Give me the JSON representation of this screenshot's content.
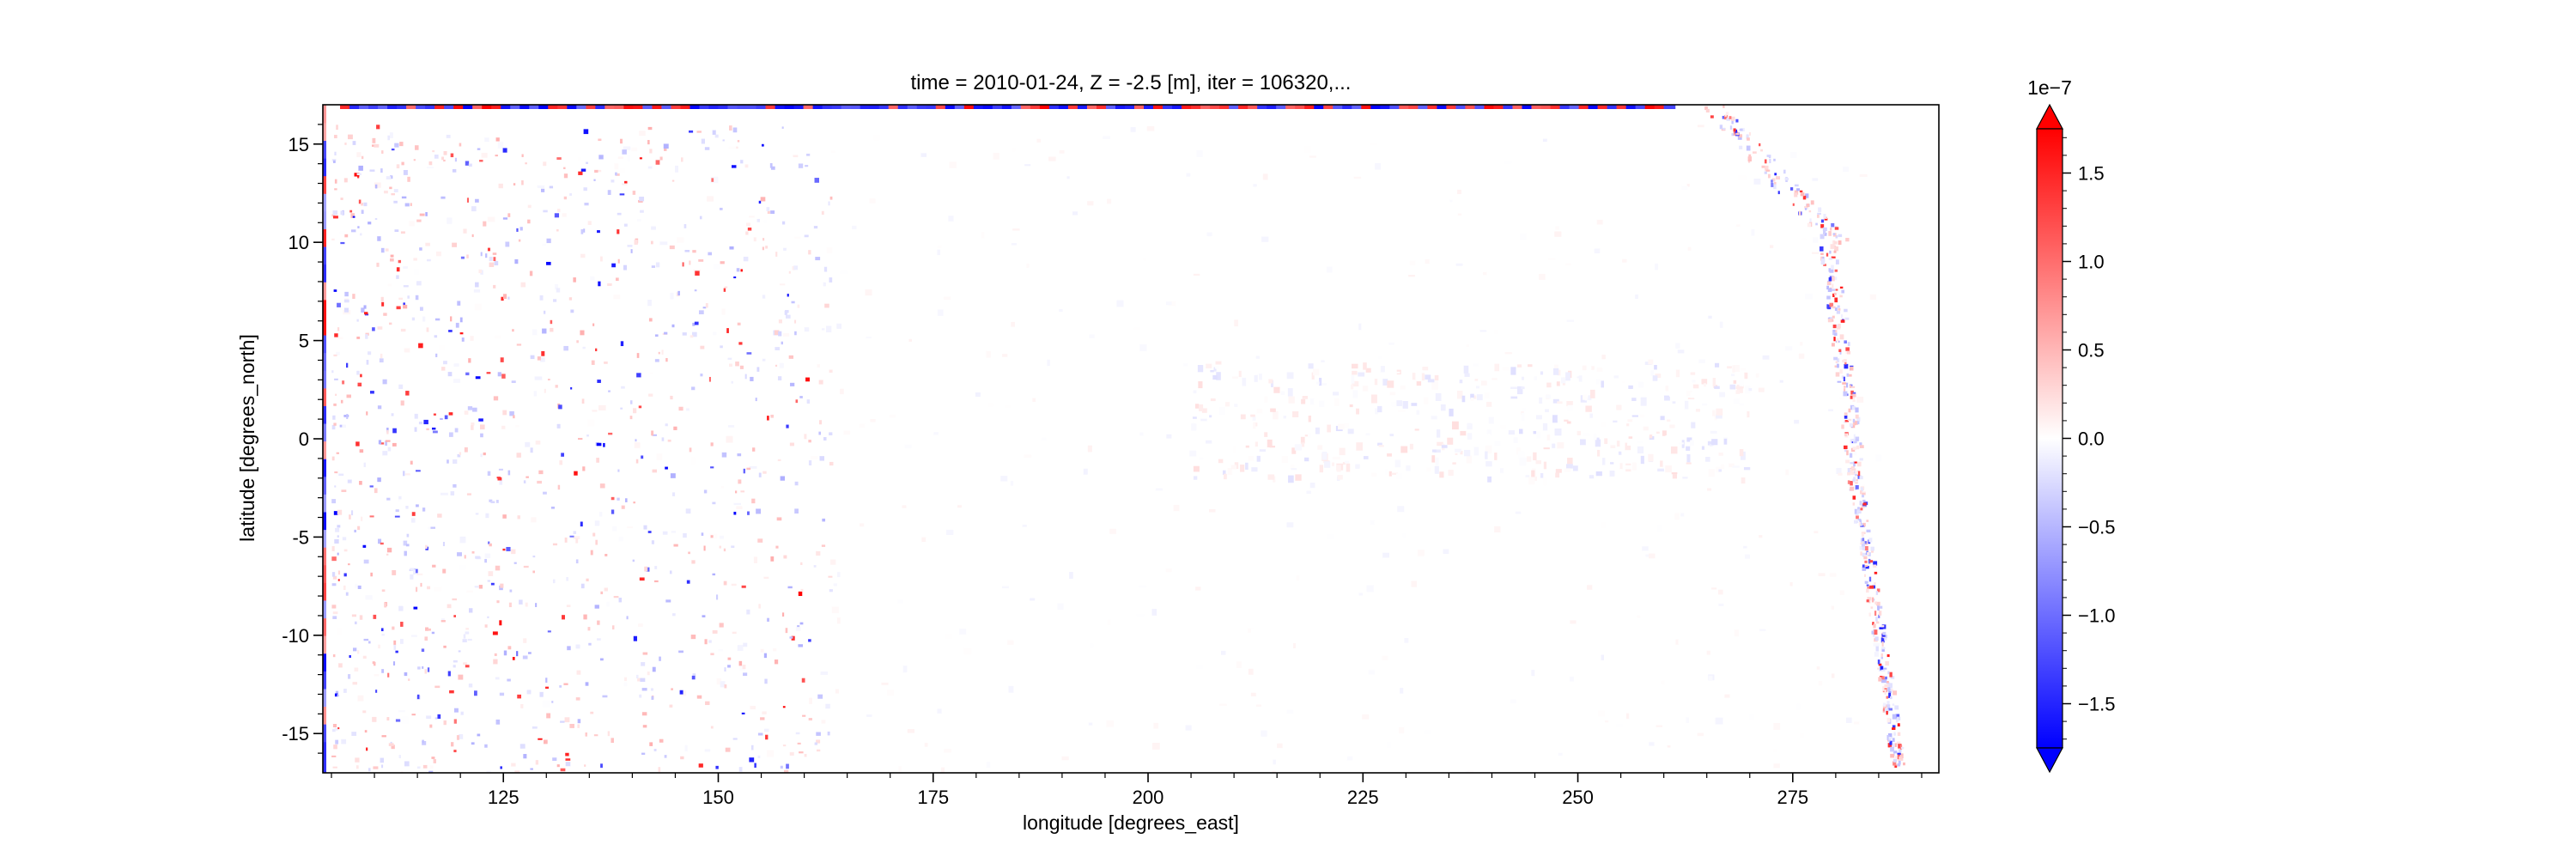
{
  "chart_data": {
    "type": "heatmap",
    "title": "time = 2010-01-24, Z = -2.5 [m], iter = 106320,...",
    "xlabel": "longitude [degrees_east]",
    "ylabel": "latitude [degrees_north]",
    "xlim": [
      104,
      292
    ],
    "ylim": [
      -17,
      17
    ],
    "xticks": [
      125,
      150,
      175,
      200,
      225,
      250,
      275
    ],
    "yticks": [
      15,
      10,
      5,
      0,
      -5,
      -10,
      -15
    ],
    "grid": false,
    "colorbar": {
      "multiplier_label": "1e−7",
      "vmin": -1.75,
      "vmax": 1.75,
      "ticks": [
        1.5,
        1.0,
        0.5,
        0.0,
        -0.5,
        -1.0,
        -1.5
      ],
      "colormap": "bwr",
      "extend": "both",
      "colors": {
        "low": "#0000ff",
        "mid": "#ffffff",
        "high": "#ff0000"
      }
    },
    "features": [
      {
        "name": "northern boundary strip",
        "lon_range": [
          106,
          260
        ],
        "lat": 17,
        "values": "alternating +/-1.75"
      },
      {
        "name": "western boundary strip",
        "lon": 104,
        "lat_range": [
          -17,
          17
        ],
        "values": "mixed +/-1.5"
      },
      {
        "name": "maritime continent anomalies",
        "lon_range": [
          105,
          165
        ],
        "lat_range": [
          -17,
          16
        ],
        "values": "scattered +/-1.7"
      },
      {
        "name": "equatorial cold tongue band",
        "lon_range": [
          205,
          270
        ],
        "lat_range": [
          -2,
          4
        ],
        "values": "weak +/-0.2"
      },
      {
        "name": "eastern boundary coastline",
        "lon_range": [
          262,
          288
        ],
        "lat_range": [
          -17,
          17
        ],
        "values": "scattered +/-1.5"
      }
    ]
  }
}
